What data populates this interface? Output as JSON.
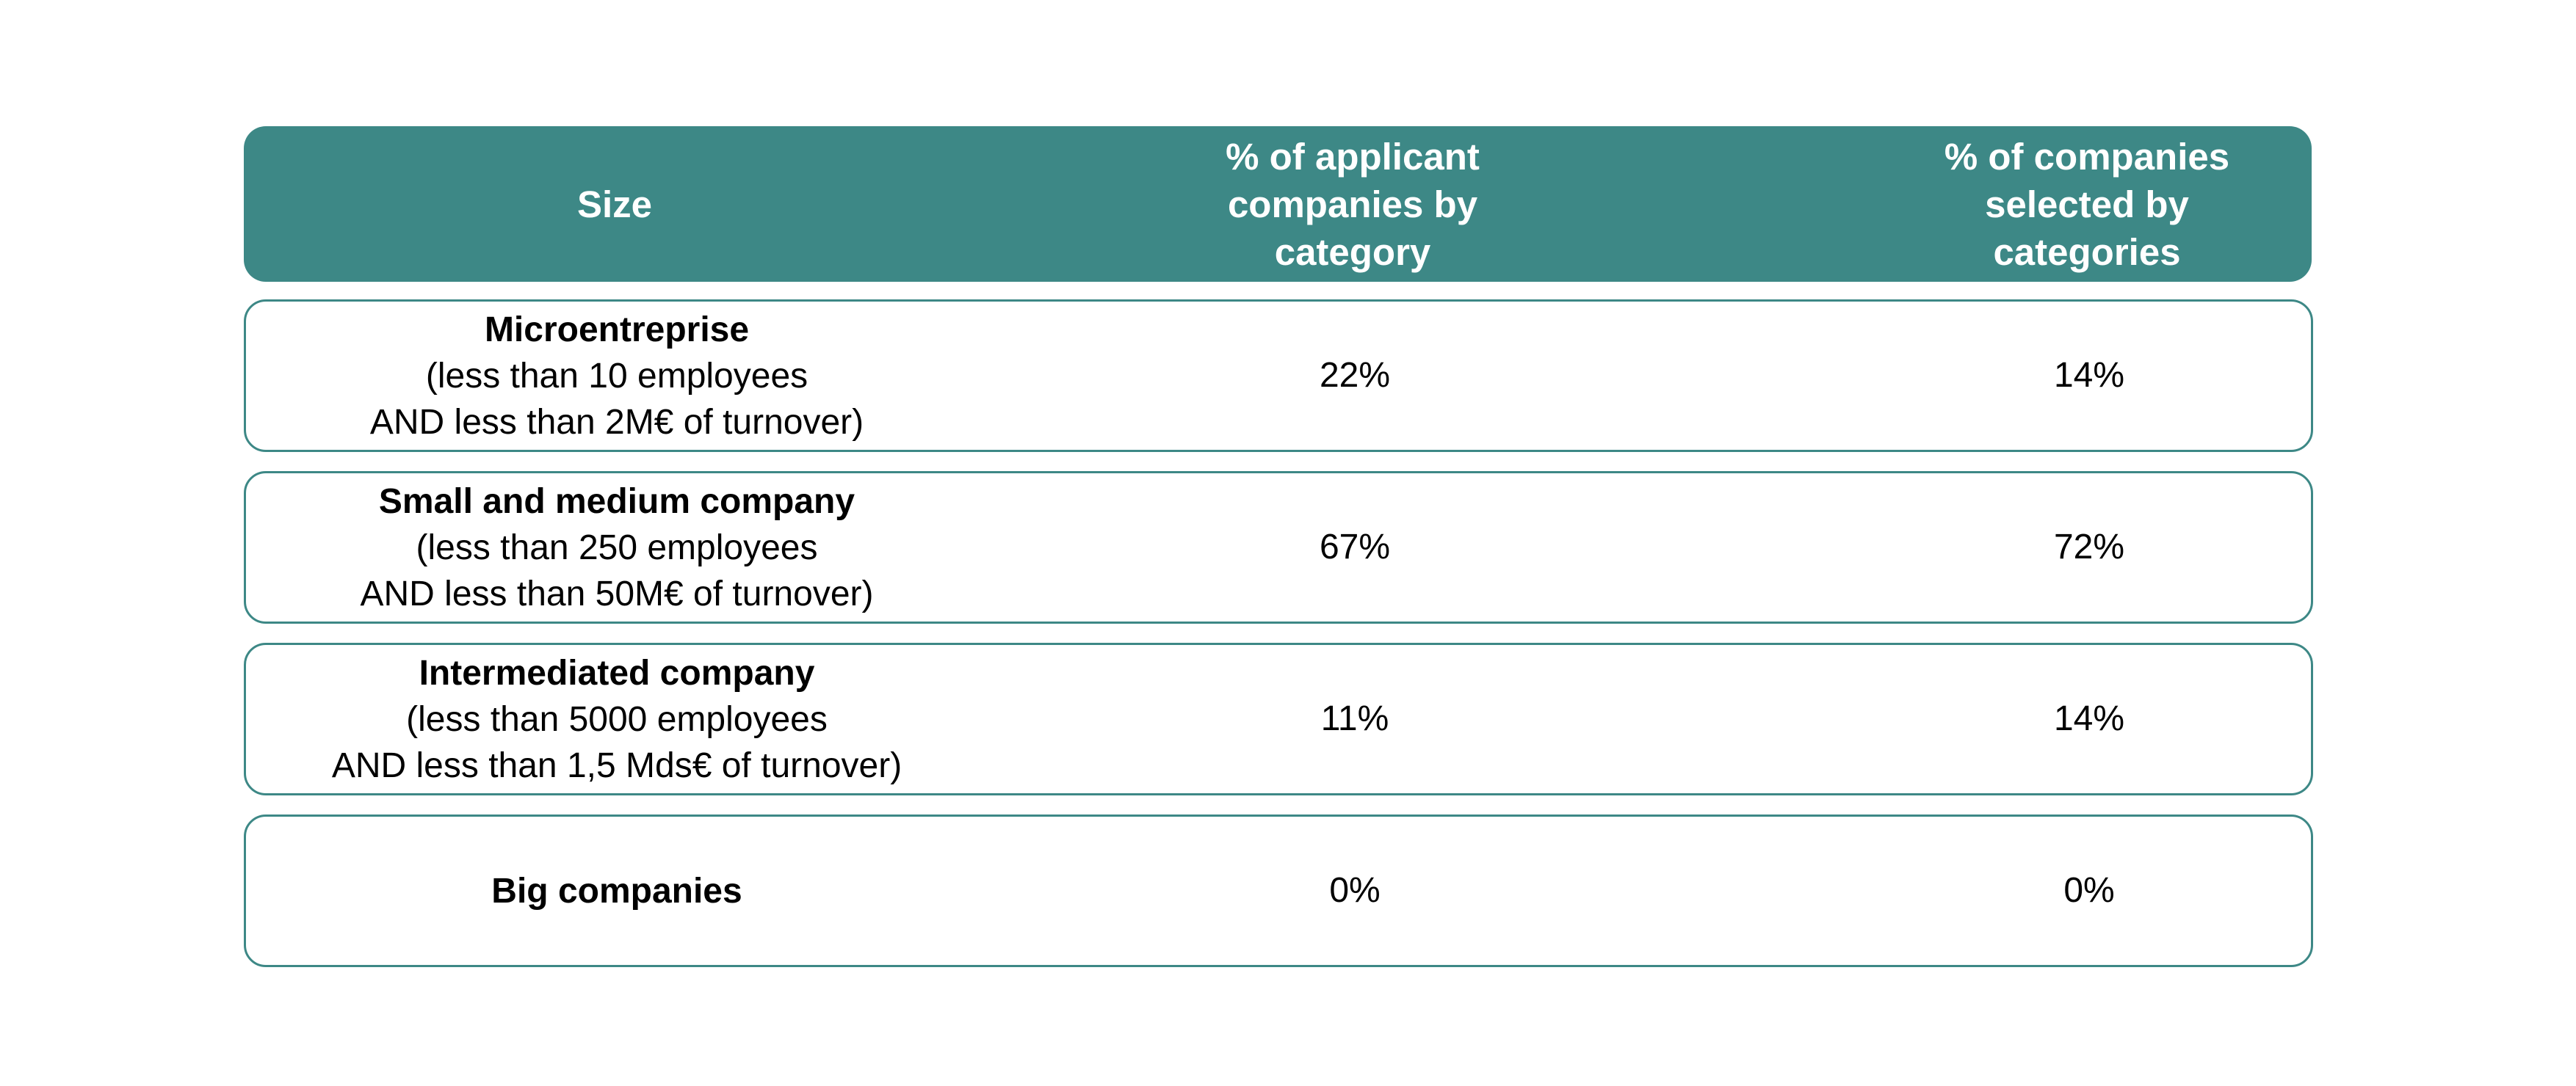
{
  "colors": {
    "header_background": "#3d8886",
    "row_border": "#3d8886",
    "header_text": "#ffffff",
    "body_text": "#000000"
  },
  "chart_data": {
    "type": "table",
    "columns": [
      "Size",
      "% of applicant companies by category",
      "% of companies selected by categories"
    ],
    "rows": [
      {
        "size": "Microentreprise",
        "description_line1": "(less than 10 employees",
        "description_line2": "AND less than 2M€ of turnover)",
        "applicant": "22%",
        "selected": "14%"
      },
      {
        "size": "Small and medium company",
        "description_line1": "(less than 250 employees",
        "description_line2": "AND less than 50M€ of turnover)",
        "applicant": "67%",
        "selected": "72%"
      },
      {
        "size": "Intermediated company",
        "description_line1": "(less than 5000 employees",
        "description_line2": "AND less than 1,5 Mds€ of turnover)",
        "applicant": "11%",
        "selected": "14%"
      },
      {
        "size": "Big companies",
        "description_line1": "",
        "description_line2": "",
        "applicant": "0%",
        "selected": "0%"
      }
    ]
  }
}
